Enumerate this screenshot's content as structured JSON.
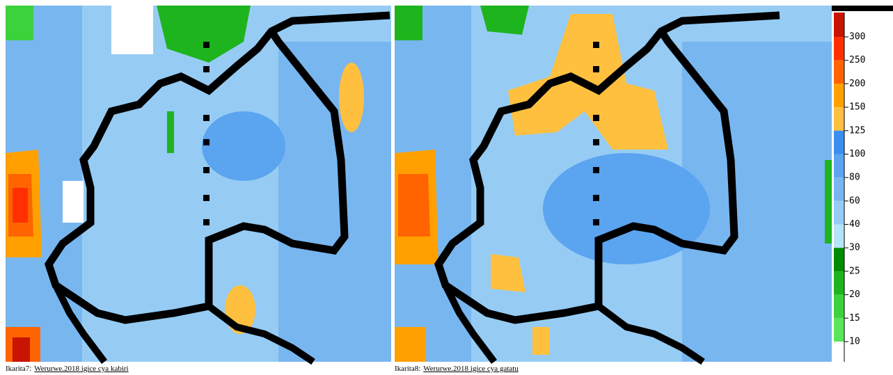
{
  "captions": [
    {
      "prefix": "Ikarita7:",
      "link": "Werurwe.2018 igice cya kabiri"
    },
    {
      "prefix": "Ikarita8:",
      "link": "Werurwe.2018 igice cya gatatu"
    }
  ],
  "legend": {
    "ticks": [
      300,
      250,
      200,
      150,
      125,
      100,
      80,
      60,
      40,
      30,
      25,
      20,
      15,
      10
    ],
    "colors": [
      "#c81400",
      "#ff3000",
      "#ff6400",
      "#ffa000",
      "#ffc040",
      "#3a8ef0",
      "#5aa4f0",
      "#78b6f0",
      "#96ccf4",
      "#b4e4fa",
      "#008c00",
      "#1eb41e",
      "#3cd23c",
      "#5ae65a",
      "#ffffff"
    ]
  }
}
